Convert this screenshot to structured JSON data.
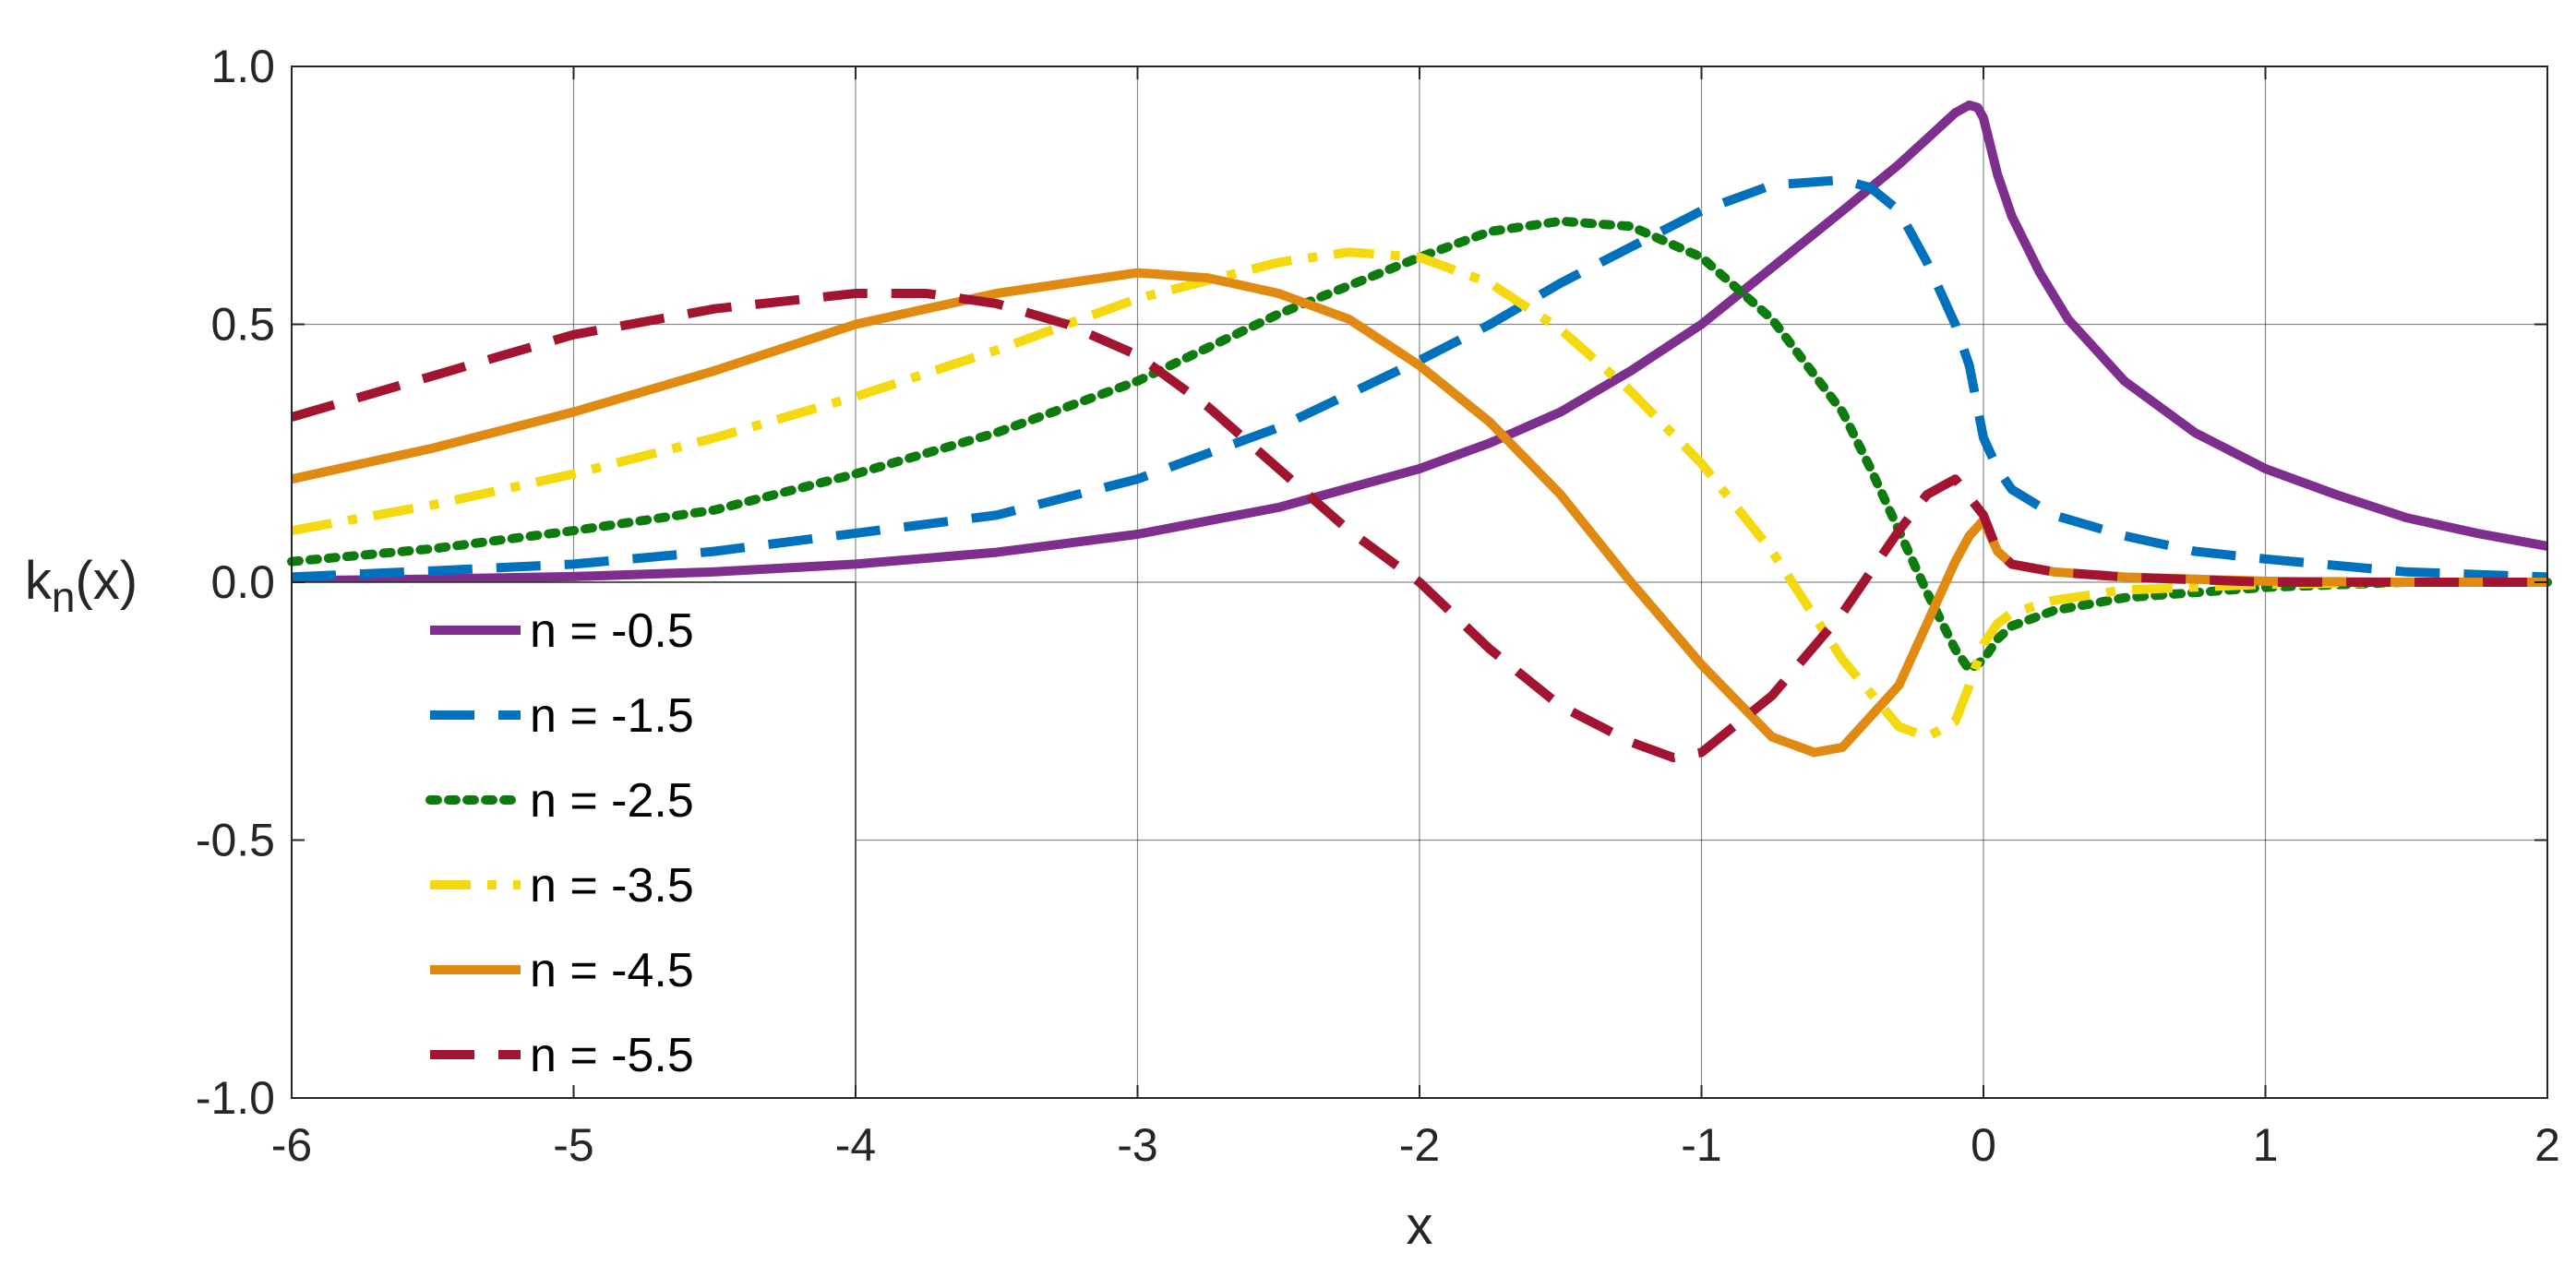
{
  "chart_data": {
    "type": "line",
    "title": "",
    "xlabel": "x",
    "ylabel": {
      "base": "k",
      "sub": "n",
      "suffix": "(x)"
    },
    "xlim": [
      -6,
      2
    ],
    "ylim": [
      -1,
      1
    ],
    "xticks": [
      -6,
      -5,
      -4,
      -3,
      -2,
      -1,
      0,
      1,
      2
    ],
    "xtick_labels": [
      "-6",
      "-5",
      "-4",
      "-3",
      "-2",
      "-1",
      "0",
      "1",
      "2"
    ],
    "yticks": [
      -1,
      -0.5,
      0,
      0.5,
      1
    ],
    "ytick_labels": [
      "-1.0",
      "-0.5",
      "0.0",
      "0.5",
      "1.0"
    ],
    "grid": true,
    "legend_position": "lower-left",
    "series": [
      {
        "name": "n = -0.5",
        "color": "#7E2F8E",
        "dash": "solid",
        "x": [
          -6,
          -5.5,
          -5,
          -4.5,
          -4,
          -3.5,
          -3,
          -2.5,
          -2,
          -1.75,
          -1.5,
          -1.25,
          -1,
          -0.75,
          -0.5,
          -0.3,
          -0.2,
          -0.1,
          -0.05,
          -0.02,
          0,
          0.05,
          0.1,
          0.2,
          0.3,
          0.5,
          0.75,
          1,
          1.25,
          1.5,
          1.75,
          2
        ],
        "y": [
          0.003,
          0.006,
          0.011,
          0.02,
          0.035,
          0.058,
          0.093,
          0.145,
          0.22,
          0.27,
          0.33,
          0.41,
          0.5,
          0.61,
          0.72,
          0.81,
          0.86,
          0.91,
          0.925,
          0.92,
          0.9,
          0.79,
          0.71,
          0.6,
          0.51,
          0.39,
          0.29,
          0.22,
          0.17,
          0.125,
          0.095,
          0.07
        ]
      },
      {
        "name": "n = -1.5",
        "color": "#0072BD",
        "dash": "dashed",
        "x": [
          -6,
          -5.5,
          -5,
          -4.5,
          -4,
          -3.5,
          -3,
          -2.5,
          -2,
          -1.75,
          -1.5,
          -1.25,
          -1,
          -0.75,
          -0.5,
          -0.4,
          -0.3,
          -0.2,
          -0.1,
          -0.05,
          0,
          0.05,
          0.1,
          0.25,
          0.5,
          0.75,
          1,
          1.5,
          2
        ],
        "y": [
          0.01,
          0.022,
          0.035,
          0.06,
          0.095,
          0.13,
          0.2,
          0.3,
          0.43,
          0.5,
          0.58,
          0.65,
          0.72,
          0.77,
          0.78,
          0.765,
          0.72,
          0.62,
          0.5,
          0.42,
          0.28,
          0.22,
          0.18,
          0.13,
          0.09,
          0.06,
          0.045,
          0.02,
          0.01
        ]
      },
      {
        "name": "n = -2.5",
        "color": "#0E7B0E",
        "dash": "dotted",
        "x": [
          -6,
          -5.5,
          -5,
          -4.5,
          -4,
          -3.5,
          -3,
          -2.5,
          -2,
          -1.75,
          -1.5,
          -1.25,
          -1,
          -0.75,
          -0.5,
          -0.4,
          -0.3,
          -0.2,
          -0.1,
          -0.05,
          0,
          0.05,
          0.1,
          0.25,
          0.5,
          1,
          1.5,
          2
        ],
        "y": [
          0.04,
          0.065,
          0.1,
          0.14,
          0.21,
          0.29,
          0.39,
          0.52,
          0.63,
          0.68,
          0.7,
          0.69,
          0.63,
          0.51,
          0.33,
          0.22,
          0.1,
          -0.02,
          -0.13,
          -0.17,
          -0.15,
          -0.11,
          -0.085,
          -0.055,
          -0.03,
          -0.01,
          0,
          0
        ]
      },
      {
        "name": "n = -3.5",
        "color": "#F5D90F",
        "dash": "dashdot",
        "x": [
          -6,
          -5.5,
          -5,
          -4.5,
          -4,
          -3.5,
          -3,
          -2.5,
          -2.25,
          -2,
          -1.75,
          -1.5,
          -1.25,
          -1,
          -0.75,
          -0.5,
          -0.3,
          -0.2,
          -0.1,
          -0.05,
          0,
          0.05,
          0.1,
          0.25,
          0.5,
          1,
          1.5,
          2
        ],
        "y": [
          0.1,
          0.15,
          0.21,
          0.28,
          0.36,
          0.45,
          0.55,
          0.62,
          0.64,
          0.63,
          0.58,
          0.49,
          0.37,
          0.23,
          0.06,
          -0.15,
          -0.28,
          -0.3,
          -0.27,
          -0.2,
          -0.12,
          -0.08,
          -0.06,
          -0.035,
          -0.015,
          -0.004,
          0,
          0
        ]
      },
      {
        "name": "n = -4.5",
        "color": "#E08A12",
        "dash": "solid",
        "x": [
          -6,
          -5.5,
          -5,
          -4.5,
          -4,
          -3.5,
          -3,
          -2.75,
          -2.5,
          -2.25,
          -2,
          -1.75,
          -1.5,
          -1.25,
          -1,
          -0.75,
          -0.6,
          -0.5,
          -0.3,
          -0.2,
          -0.1,
          -0.05,
          0,
          0.05,
          0.1,
          0.25,
          0.5,
          1,
          1.5,
          2
        ],
        "y": [
          0.2,
          0.26,
          0.33,
          0.41,
          0.5,
          0.56,
          0.6,
          0.59,
          0.56,
          0.51,
          0.42,
          0.31,
          0.17,
          0.0,
          -0.16,
          -0.3,
          -0.33,
          -0.32,
          -0.2,
          -0.08,
          0.04,
          0.09,
          0.12,
          0.06,
          0.035,
          0.02,
          0.01,
          0.002,
          0,
          0
        ]
      },
      {
        "name": "n = -5.5",
        "color": "#A2142F",
        "dash": "dashed",
        "x": [
          -6,
          -5.5,
          -5,
          -4.5,
          -4,
          -3.75,
          -3.5,
          -3.25,
          -3,
          -2.75,
          -2.5,
          -2.25,
          -2,
          -1.75,
          -1.5,
          -1.25,
          -1.1,
          -1,
          -0.75,
          -0.5,
          -0.3,
          -0.2,
          -0.1,
          0,
          0.05,
          0.1,
          0.25,
          0.5,
          1,
          1.5,
          2
        ],
        "y": [
          0.32,
          0.4,
          0.48,
          0.53,
          0.56,
          0.56,
          0.54,
          0.5,
          0.44,
          0.34,
          0.22,
          0.1,
          0.0,
          -0.13,
          -0.24,
          -0.31,
          -0.34,
          -0.33,
          -0.22,
          -0.06,
          0.1,
          0.17,
          0.2,
          0.13,
          0.06,
          0.035,
          0.02,
          0.01,
          0,
          0,
          0
        ]
      }
    ]
  }
}
